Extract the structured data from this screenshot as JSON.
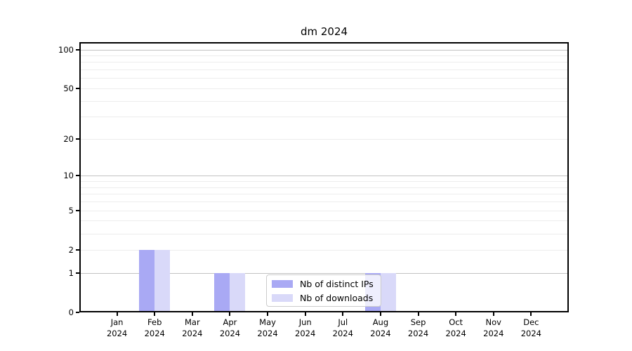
{
  "chart_data": {
    "type": "bar",
    "title": "dm 2024",
    "categories": [
      "Jan",
      "Feb",
      "Mar",
      "Apr",
      "May",
      "Jun",
      "Jul",
      "Aug",
      "Sep",
      "Oct",
      "Nov",
      "Dec"
    ],
    "year_label": "2024",
    "series": [
      {
        "name": "Nb of distinct IPs",
        "color": "#a9a9f4",
        "values": [
          0,
          2,
          0,
          1,
          0,
          0,
          0,
          1,
          0,
          0,
          0,
          0
        ]
      },
      {
        "name": "Nb of downloads",
        "color": "#d9d9f9",
        "values": [
          0,
          2,
          0,
          1,
          0,
          0,
          0,
          1,
          0,
          0,
          0,
          0
        ]
      }
    ],
    "y_scale": "log10(1+v)",
    "ylim": [
      0,
      114
    ],
    "y_ticks_labeled": [
      0,
      1,
      2,
      5,
      10,
      20,
      50,
      100
    ],
    "y_gridlines_major": [
      1,
      10,
      100
    ],
    "y_gridlines_minor": [
      2,
      3,
      4,
      5,
      6,
      7,
      8,
      9,
      20,
      30,
      40,
      50,
      60,
      70,
      80,
      90
    ],
    "grid": true,
    "legend_position": "lower center-right inside plot",
    "colors": {
      "major_grid": "#c3c3c3",
      "minor_grid": "#ededed",
      "spine": "#000000",
      "text": "#000000",
      "legend_border": "#cccccc",
      "legend_background": "rgba(255,255,255,0.8)"
    }
  }
}
